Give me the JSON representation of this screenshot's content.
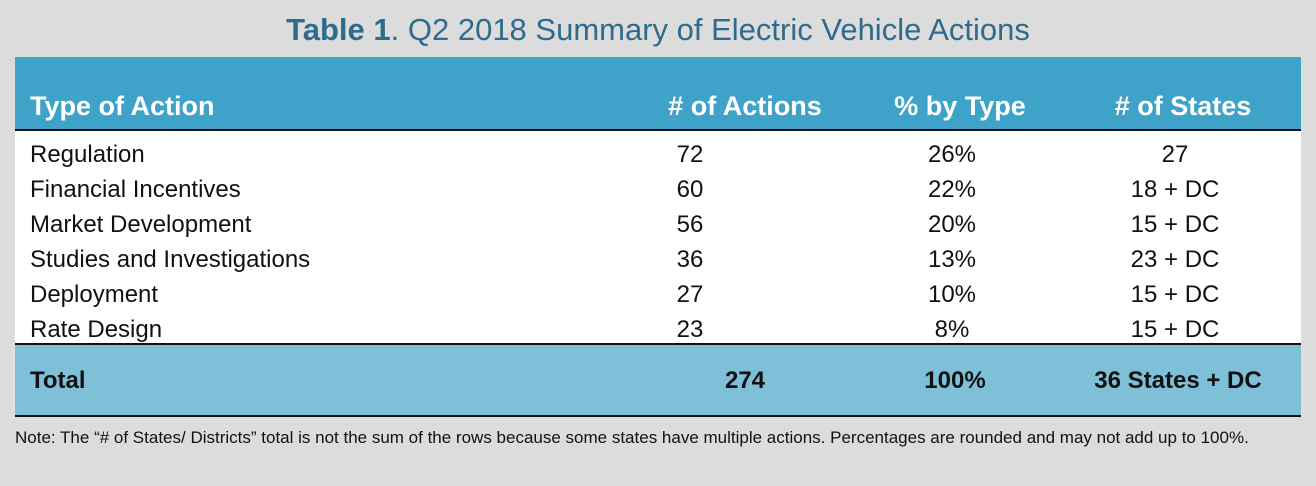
{
  "title": {
    "label": "Table 1",
    "text": ". Q2 2018 Summary of Electric Vehicle Actions"
  },
  "table": {
    "headers": [
      "Type of Action",
      "# of Actions",
      "% by Type",
      "# of States"
    ],
    "rows": [
      [
        "Regulation",
        "72",
        "26%",
        "27"
      ],
      [
        "Financial Incentives",
        "60",
        "22%",
        "18 + DC"
      ],
      [
        "Market Development",
        "56",
        "20%",
        "15 + DC"
      ],
      [
        "Studies and Investigations",
        "36",
        "13%",
        "23 + DC"
      ],
      [
        "Deployment",
        "27",
        "10%",
        "15 + DC"
      ],
      [
        "Rate Design",
        "23",
        "8%",
        "15 + DC"
      ]
    ],
    "total": [
      "Total",
      "274",
      "100%",
      "36 States + DC"
    ]
  },
  "note": "Note: The “# of States/ Districts” total is not the sum of the rows because some states have multiple actions. Percentages are rounded and may not add up to 100%.",
  "colors": {
    "header_bg": "#3fa2c8",
    "total_bg": "#7fc0d9",
    "title_color": "#2f6b8c",
    "page_bg": "#dcdcdc"
  }
}
